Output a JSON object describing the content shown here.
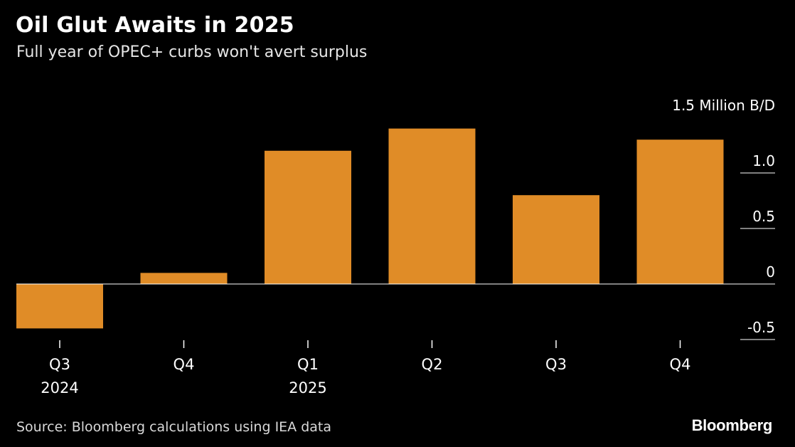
{
  "header": {
    "title": "Oil Glut Awaits in 2025",
    "subtitle": "Full year of OPEC+ curbs won't avert surplus"
  },
  "footer": {
    "source": "Source: Bloomberg calculations using IEA data",
    "logo_text": "Bloomberg"
  },
  "chart_data": {
    "type": "bar",
    "categories": [
      "Q3",
      "Q4",
      "Q1",
      "Q2",
      "Q3",
      "Q4"
    ],
    "category_sublabels": [
      "2024",
      "",
      "2025",
      "",
      "",
      ""
    ],
    "values": [
      -0.4,
      0.1,
      1.2,
      1.4,
      0.8,
      1.3
    ],
    "y_unit_label": "Million B/D",
    "y_ticks": [
      1.5,
      1.0,
      0.5,
      0,
      -0.5
    ],
    "y_tick_labels": [
      "1.5 Million B/D",
      "1.0",
      "0.5",
      "0",
      "-0.5"
    ],
    "ylim": [
      -0.5,
      1.5
    ],
    "bar_color": "#e08c27",
    "grid": false,
    "y_axis_position": "right"
  }
}
